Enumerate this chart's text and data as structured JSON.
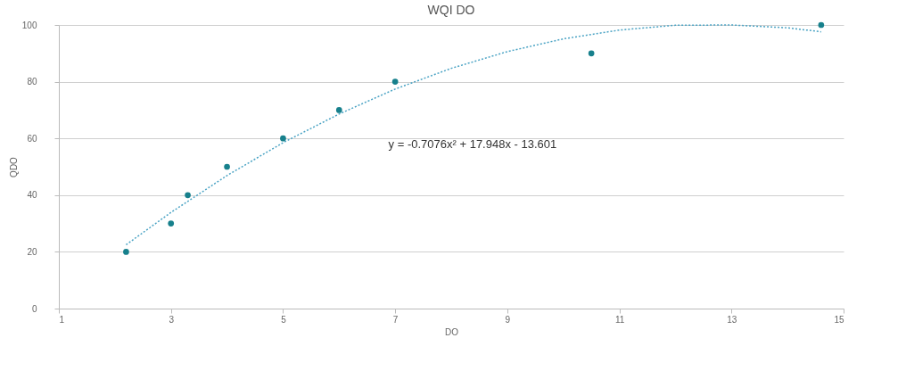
{
  "chart_data": {
    "type": "scatter",
    "title": "WQI DO",
    "xlabel": "DO",
    "ylabel": "QDO",
    "xlim": [
      1,
      15
    ],
    "xticks": [
      1,
      3,
      5,
      7,
      9,
      11,
      13,
      15
    ],
    "ylim": [
      0,
      100
    ],
    "yticks": [
      0,
      20,
      40,
      60,
      80,
      100
    ],
    "grid": "y",
    "marker": "circle",
    "annotations": [
      "y = -0.7076x² + 17.948x - 13.601"
    ],
    "series": [
      {
        "color": "#17808c",
        "x": [
          2.2,
          3,
          3.3,
          4,
          5,
          6,
          7,
          10.5,
          14.6
        ],
        "values": [
          20,
          30,
          40,
          50,
          60,
          70,
          80,
          90,
          100
        ]
      },
      {
        "type": "line",
        "line_style": "dotted",
        "marker": "none",
        "color": "#4aa3c4",
        "x": [
          2.2,
          3,
          4,
          5,
          6,
          7,
          8,
          9,
          10,
          11,
          12,
          13,
          14,
          14.6
        ],
        "values": [
          22.5,
          33.9,
          46.9,
          58.5,
          68.6,
          77.4,
          84.7,
          90.6,
          95.1,
          98.2,
          99.9,
          100,
          99.0,
          97.6
        ]
      }
    ]
  }
}
